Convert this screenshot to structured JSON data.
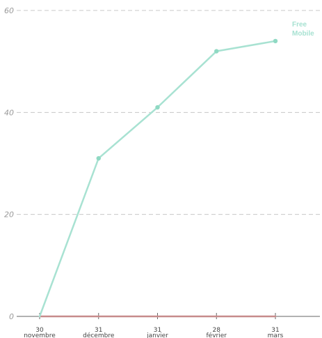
{
  "chart_data": {
    "type": "line",
    "x": [
      {
        "day": "30",
        "month": "novembre"
      },
      {
        "day": "31",
        "month": "décembre"
      },
      {
        "day": "31",
        "month": "janvier"
      },
      {
        "day": "28",
        "month": "février"
      },
      {
        "day": "31",
        "month": "mars"
      }
    ],
    "yticks": [
      "0",
      "20",
      "40",
      "60"
    ],
    "ylim": [
      0,
      60
    ],
    "grid": true,
    "series": [
      {
        "name": "Free Mobile",
        "name_lines": [
          "Free",
          "Mobile"
        ],
        "color": "#a8e2d2",
        "marker_color": "#8fd9c3",
        "values": [
          0,
          31,
          41,
          52,
          54
        ]
      },
      {
        "name": "",
        "color": "#c78b8b",
        "values": [
          0,
          0,
          0,
          0,
          0
        ]
      }
    ]
  }
}
